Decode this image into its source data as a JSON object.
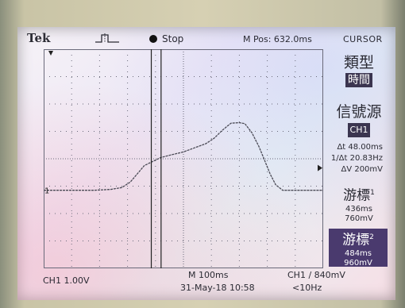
{
  "header": {
    "brand": "Tek",
    "run_status": "Stop",
    "m_pos": "M Pos: 632.0ms",
    "menu_title": "CURSOR"
  },
  "menu": {
    "type_label": "類型",
    "type_value": "時間",
    "source_label": "信號源",
    "source_value": "CH1",
    "delta_t": "48.00ms",
    "inv_delta_t": "20.83Hz",
    "delta_v": "200mV",
    "cursor1_label": "游標",
    "cursor1_index": "1",
    "cursor1_time": "436ms",
    "cursor1_volt": "760mV",
    "cursor2_label": "游標",
    "cursor2_index": "2",
    "cursor2_time": "484ms",
    "cursor2_volt": "960mV"
  },
  "status": {
    "ch1_scale": "CH1  1.00V",
    "timebase": "M 100ms",
    "date": "31-May-18 10:58",
    "trigger": "CH1 ∕ 840mV",
    "trigger_freq": "<10Hz",
    "ch1_marker": "1"
  },
  "colors": {
    "trace": "#4a4a55",
    "grid": "#6a6a7a",
    "selected_bg": "#4a3a6e"
  },
  "waveform": {
    "time_axis": "graticule x (0-10 divisions)",
    "level_axis": "graticule y (0-8 divisions, 0 = top)",
    "points": [
      [
        0.0,
        5.15
      ],
      [
        0.6,
        5.15
      ],
      [
        1.2,
        5.15
      ],
      [
        1.8,
        5.15
      ],
      [
        2.4,
        5.12
      ],
      [
        2.8,
        5.05
      ],
      [
        3.1,
        4.85
      ],
      [
        3.35,
        4.55
      ],
      [
        3.6,
        4.25
      ],
      [
        3.9,
        4.1
      ],
      [
        4.2,
        3.95
      ],
      [
        4.6,
        3.85
      ],
      [
        5.0,
        3.75
      ],
      [
        5.4,
        3.6
      ],
      [
        5.8,
        3.45
      ],
      [
        6.1,
        3.25
      ],
      [
        6.4,
        2.95
      ],
      [
        6.7,
        2.7
      ],
      [
        7.0,
        2.68
      ],
      [
        7.2,
        2.72
      ],
      [
        7.45,
        3.05
      ],
      [
        7.7,
        3.55
      ],
      [
        7.9,
        4.05
      ],
      [
        8.1,
        4.55
      ],
      [
        8.3,
        4.95
      ],
      [
        8.55,
        5.15
      ],
      [
        9.0,
        5.15
      ],
      [
        10.0,
        5.15
      ]
    ],
    "cursor1_x": 3.85,
    "cursor2_x": 4.2
  }
}
